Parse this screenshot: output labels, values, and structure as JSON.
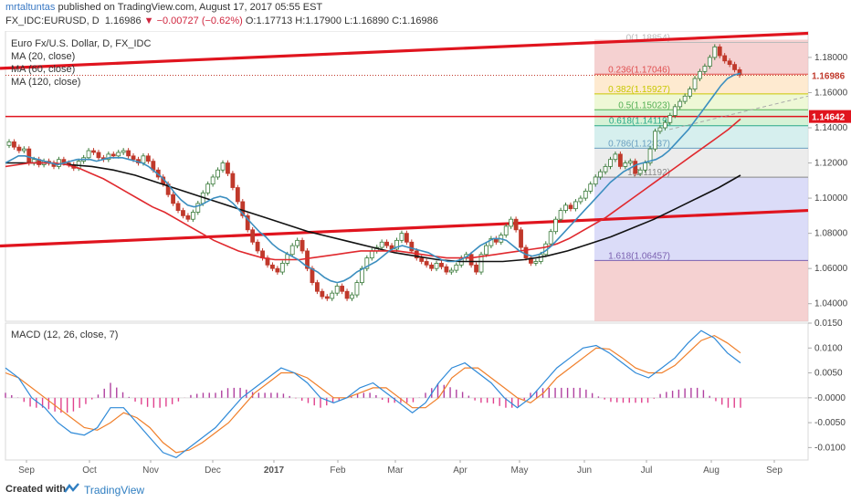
{
  "header": {
    "author": "mrtaltuntas",
    "published": "published on TradingView.com, August 17, 2017 05:55 EST",
    "symbol": "FX_IDC:EURUSD, D",
    "last": "1.16986",
    "change": "▼ −0.00727 (−0.62%)",
    "ohlc": "O:1.17713 H:1.17900 L:1.16890 C:1.16986"
  },
  "footer": {
    "created": "Created with",
    "brand": "TradingView"
  },
  "chart_data": {
    "type": "line",
    "title": "Euro Fx/U.S. Dollar, D, FX_IDC",
    "legend": [
      "MA (20, close)",
      "MA (60, close)",
      "MA (120, close)"
    ],
    "colors": {
      "ma20": "#3b8ebf",
      "ma60": "#e0292e",
      "ma120": "#111111",
      "up": "#3a7a3a",
      "down": "#c0392b",
      "trend": "#e0141e",
      "macd": "#2f8ad8",
      "signal": "#f07f2a",
      "hist": "#e0428e",
      "hist_pos": "#b040a0"
    },
    "x_labels": [
      "Sep",
      "Oct",
      "Nov",
      "Dec",
      "2017",
      "Feb",
      "Mar",
      "Apr",
      "May",
      "Jun",
      "Jul",
      "Aug",
      "Sep"
    ],
    "price_axis": {
      "ylim": [
        1.03,
        1.195
      ],
      "ticks": [
        "1.18000",
        "1.16000",
        "1.14000",
        "1.12000",
        "1.10000",
        "1.08000",
        "1.06000",
        "1.04000"
      ]
    },
    "price_tags": {
      "last": "1.16986",
      "level": "1.14642"
    },
    "horizontal_line": 1.14642,
    "price_line": 1.16986,
    "trendlines": [
      {
        "from": [
          0,
          1.1738
        ],
        "to": [
          885,
          1.1937
        ]
      },
      {
        "from": [
          0,
          1.0728
        ],
        "to": [
          885,
          1.093
        ]
      }
    ],
    "fib": {
      "x_start": 651,
      "levels": [
        {
          "label": "0(1.18854)",
          "value": 1.18854,
          "line": "#bbbbbb",
          "fill": "#f2c2c2"
        },
        {
          "label": "0.236(1.17046)",
          "value": 1.17046,
          "line": "#e05050",
          "fill": "#fde3c0"
        },
        {
          "label": "0.382(1.15927)",
          "value": 1.15927,
          "line": "#c8c800",
          "fill": "#e8f5c8"
        },
        {
          "label": "0.5(1.15023)",
          "value": 1.15023,
          "line": "#55b055",
          "fill": "#c8eec8"
        },
        {
          "label": "0.618(1.14119)",
          "value": 1.14119,
          "line": "#2aa88a",
          "fill": "#c8eae8"
        },
        {
          "label": "0.786(1.12837)",
          "value": 1.12837,
          "line": "#6a9fc0",
          "fill": "#e6e6e6"
        },
        {
          "label": "1(1.11192)",
          "value": 1.11192,
          "line": "#888888",
          "fill": "#cfd0f5"
        },
        {
          "label": "1.618(1.06457)",
          "value": 1.06457,
          "line": "#7a60b0",
          "fill": "#f2c2c2"
        }
      ]
    },
    "price": [
      1.132,
      1.129,
      1.127,
      1.128,
      1.12,
      1.122,
      1.119,
      1.121,
      1.12,
      1.118,
      1.122,
      1.12,
      1.119,
      1.117,
      1.121,
      1.123,
      1.127,
      1.126,
      1.123,
      1.122,
      1.125,
      1.124,
      1.126,
      1.127,
      1.124,
      1.122,
      1.12,
      1.124,
      1.121,
      1.116,
      1.112,
      1.108,
      1.102,
      1.097,
      1.093,
      1.09,
      1.088,
      1.092,
      1.097,
      1.103,
      1.108,
      1.112,
      1.116,
      1.12,
      1.114,
      1.106,
      1.098,
      1.09,
      1.082,
      1.075,
      1.07,
      1.066,
      1.062,
      1.06,
      1.058,
      1.063,
      1.068,
      1.073,
      1.076,
      1.07,
      1.06,
      1.052,
      1.047,
      1.044,
      1.043,
      1.046,
      1.05,
      1.047,
      1.043,
      1.045,
      1.052,
      1.06,
      1.066,
      1.07,
      1.072,
      1.075,
      1.073,
      1.071,
      1.076,
      1.08,
      1.075,
      1.07,
      1.066,
      1.064,
      1.062,
      1.06,
      1.063,
      1.061,
      1.058,
      1.059,
      1.062,
      1.066,
      1.068,
      1.062,
      1.058,
      1.068,
      1.073,
      1.077,
      1.075,
      1.079,
      1.084,
      1.088,
      1.082,
      1.072,
      1.066,
      1.063,
      1.064,
      1.068,
      1.074,
      1.081,
      1.088,
      1.093,
      1.096,
      1.094,
      1.098,
      1.1,
      1.104,
      1.108,
      1.112,
      1.115,
      1.118,
      1.122,
      1.125,
      1.118,
      1.12,
      1.121,
      1.114,
      1.116,
      1.12,
      1.128,
      1.138,
      1.14,
      1.143,
      1.147,
      1.152,
      1.155,
      1.158,
      1.162,
      1.168,
      1.172,
      1.175,
      1.18,
      1.186,
      1.181,
      1.178,
      1.176,
      1.173,
      1.17
    ],
    "ma20": [
      1.12,
      1.122,
      1.124,
      1.124,
      1.123,
      1.122,
      1.121,
      1.12,
      1.119,
      1.12,
      1.121,
      1.122,
      1.122,
      1.122,
      1.121,
      1.122,
      1.123,
      1.123,
      1.123,
      1.122,
      1.121,
      1.12,
      1.118,
      1.115,
      1.112,
      1.108,
      1.103,
      1.099,
      1.096,
      1.095,
      1.096,
      1.098,
      1.1,
      1.101,
      1.1,
      1.097,
      1.093,
      1.089,
      1.085,
      1.081,
      1.078,
      1.074,
      1.071,
      1.069,
      1.067,
      1.065,
      1.062,
      1.06,
      1.058,
      1.055,
      1.053,
      1.052,
      1.053,
      1.055,
      1.058,
      1.06,
      1.062,
      1.064,
      1.067,
      1.07,
      1.072,
      1.073,
      1.072,
      1.071,
      1.07,
      1.069,
      1.067,
      1.065,
      1.064,
      1.064,
      1.065,
      1.067,
      1.07,
      1.073,
      1.075,
      1.077,
      1.077,
      1.076,
      1.073,
      1.07,
      1.068,
      1.067,
      1.068,
      1.07,
      1.073,
      1.077,
      1.081,
      1.085,
      1.089,
      1.093,
      1.097,
      1.101,
      1.105,
      1.109,
      1.112,
      1.115,
      1.117,
      1.119,
      1.12,
      1.121,
      1.122,
      1.124,
      1.127,
      1.131,
      1.135,
      1.139,
      1.144,
      1.149,
      1.154,
      1.159,
      1.164,
      1.168,
      1.17,
      1.171
    ],
    "ma60": [
      1.118,
      1.119,
      1.12,
      1.12,
      1.12,
      1.119,
      1.117,
      1.114,
      1.111,
      1.107,
      1.103,
      1.099,
      1.095,
      1.092,
      1.088,
      1.084,
      1.08,
      1.076,
      1.073,
      1.07,
      1.068,
      1.066,
      1.065,
      1.065,
      1.065,
      1.066,
      1.067,
      1.068,
      1.069,
      1.07,
      1.07,
      1.07,
      1.07,
      1.069,
      1.068,
      1.067,
      1.066,
      1.066,
      1.066,
      1.067,
      1.068,
      1.069,
      1.07,
      1.071,
      1.072,
      1.074,
      1.077,
      1.081,
      1.085,
      1.089,
      1.094,
      1.099,
      1.104,
      1.109,
      1.114,
      1.119,
      1.124,
      1.129,
      1.134,
      1.139,
      1.145
    ],
    "ma120": [
      1.12,
      1.12,
      1.12,
      1.119,
      1.118,
      1.116,
      1.113,
      1.109,
      1.105,
      1.101,
      1.097,
      1.093,
      1.089,
      1.085,
      1.081,
      1.078,
      1.075,
      1.072,
      1.069,
      1.067,
      1.065,
      1.064,
      1.064,
      1.064,
      1.065,
      1.067,
      1.07,
      1.074,
      1.078,
      1.083,
      1.088,
      1.094,
      1.1,
      1.106,
      1.113
    ],
    "macd_panel": {
      "title": "MACD (12, 26, close, 7)",
      "ylim": [
        -0.0125,
        0.015
      ],
      "ticks": [
        "0.0150",
        "0.0100",
        "0.0050",
        "-0.0000",
        "-0.0050",
        "-0.0100"
      ],
      "macd": [
        0.006,
        0.004,
        0.0,
        -0.002,
        -0.005,
        -0.007,
        -0.0075,
        -0.006,
        -0.002,
        -0.002,
        -0.005,
        -0.008,
        -0.011,
        -0.012,
        -0.01,
        -0.008,
        -0.006,
        -0.003,
        0.0,
        0.002,
        0.004,
        0.006,
        0.005,
        0.003,
        0.0,
        -0.001,
        0.0,
        0.002,
        0.003,
        0.001,
        -0.001,
        -0.003,
        -0.001,
        0.003,
        0.006,
        0.007,
        0.005,
        0.003,
        0.0,
        -0.002,
        0.0,
        0.003,
        0.006,
        0.008,
        0.01,
        0.0105,
        0.009,
        0.007,
        0.005,
        0.004,
        0.006,
        0.008,
        0.011,
        0.0135,
        0.012,
        0.009,
        0.007
      ],
      "signal": [
        0.005,
        0.004,
        0.002,
        0.0,
        -0.002,
        -0.004,
        -0.006,
        -0.0065,
        -0.005,
        -0.003,
        -0.004,
        -0.006,
        -0.009,
        -0.011,
        -0.0105,
        -0.009,
        -0.007,
        -0.005,
        -0.002,
        0.001,
        0.003,
        0.005,
        0.005,
        0.004,
        0.002,
        0.0,
        0.0,
        0.001,
        0.002,
        0.002,
        0.0,
        -0.002,
        -0.002,
        0.0,
        0.004,
        0.006,
        0.006,
        0.004,
        0.002,
        0.0,
        -0.001,
        0.001,
        0.004,
        0.006,
        0.008,
        0.01,
        0.0098,
        0.008,
        0.006,
        0.005,
        0.005,
        0.0065,
        0.009,
        0.0115,
        0.0125,
        0.011,
        0.009
      ]
    }
  }
}
